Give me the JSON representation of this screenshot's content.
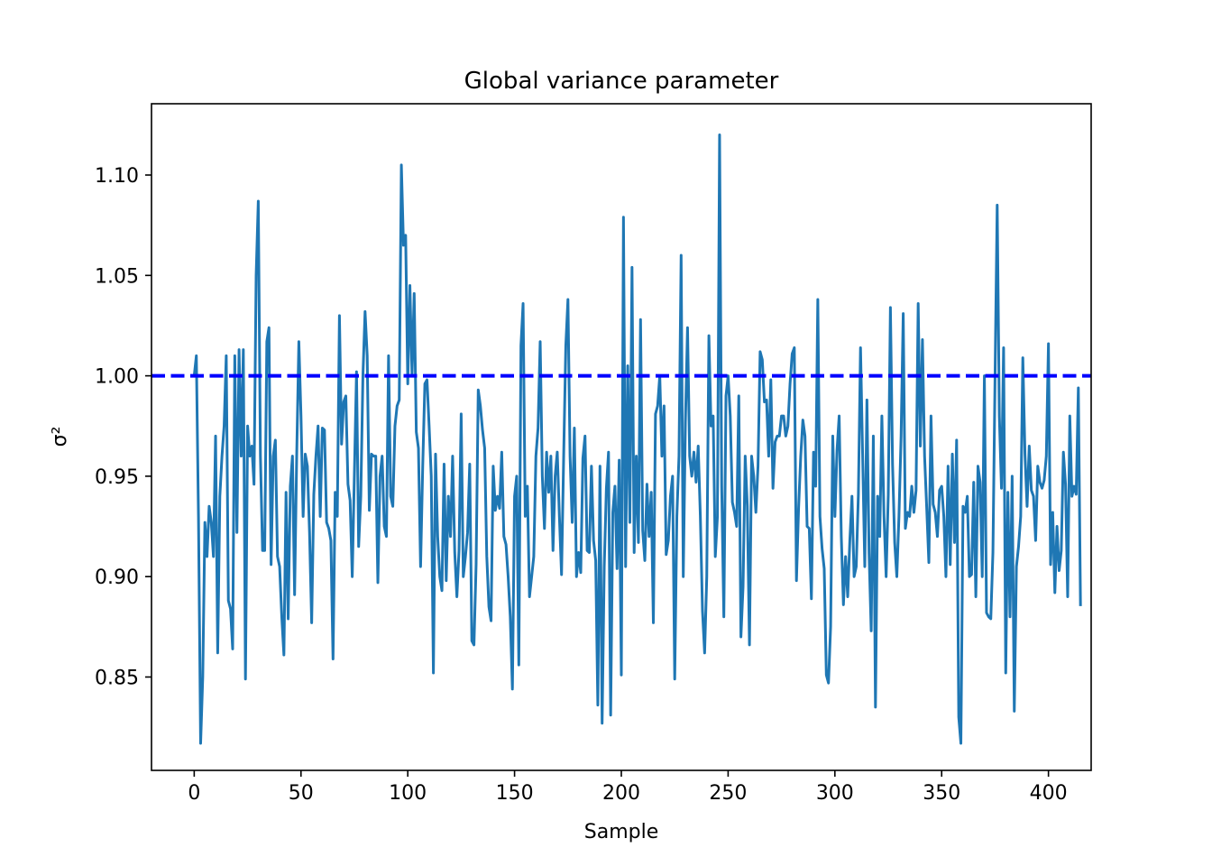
{
  "chart_data": {
    "type": "line",
    "title": "Global variance parameter",
    "xlabel": "Sample",
    "ylabel": "σ²",
    "xlim": [
      -20,
      420
    ],
    "ylim": [
      0.8035,
      1.1355
    ],
    "x_ticks": [
      0,
      50,
      100,
      150,
      200,
      250,
      300,
      350,
      400
    ],
    "y_ticks": [
      0.85,
      0.9,
      0.95,
      1.0,
      1.05,
      1.1
    ],
    "y_tick_labels": [
      "0.85",
      "0.90",
      "0.95",
      "1.00",
      "1.05",
      "1.10"
    ],
    "grid": false,
    "legend": "none",
    "reference_line": {
      "y": 1.0,
      "style": "dashed",
      "color": "#0000ff"
    },
    "series": [
      {
        "color": "#1f77b4",
        "x_start": 0,
        "x_step": 1,
        "values": [
          1.0,
          1.01,
          0.93,
          0.817,
          0.85,
          0.927,
          0.91,
          0.935,
          0.927,
          0.91,
          0.97,
          0.862,
          0.94,
          0.96,
          0.975,
          1.01,
          0.888,
          0.884,
          0.864,
          1.01,
          0.922,
          1.013,
          0.96,
          1.013,
          0.849,
          0.975,
          0.96,
          0.965,
          0.946,
          1.05,
          1.087,
          0.96,
          0.913,
          0.913,
          1.017,
          1.024,
          0.906,
          0.96,
          0.968,
          0.91,
          0.905,
          0.88,
          0.861,
          0.942,
          0.879,
          0.945,
          0.96,
          0.891,
          0.961,
          1.017,
          0.98,
          0.93,
          0.961,
          0.955,
          0.922,
          0.877,
          0.941,
          0.96,
          0.975,
          0.93,
          0.974,
          0.973,
          0.927,
          0.924,
          0.918,
          0.859,
          0.942,
          0.93,
          1.03,
          0.966,
          0.987,
          0.99,
          0.946,
          0.938,
          0.9,
          0.951,
          1.002,
          0.915,
          0.94,
          1.0,
          1.032,
          1.01,
          0.933,
          0.961,
          0.96,
          0.96,
          0.897,
          0.95,
          0.96,
          0.925,
          0.92,
          1.01,
          0.94,
          0.935,
          0.975,
          0.985,
          0.988,
          1.105,
          1.065,
          1.07,
          0.996,
          1.045,
          1.0,
          1.041,
          0.972,
          0.964,
          0.905,
          0.955,
          0.996,
          0.998,
          0.975,
          0.95,
          0.852,
          0.961,
          0.92,
          0.9,
          0.893,
          0.956,
          0.898,
          0.94,
          0.92,
          0.96,
          0.912,
          0.89,
          0.913,
          0.981,
          0.9,
          0.91,
          0.922,
          0.956,
          0.868,
          0.866,
          0.906,
          0.993,
          0.985,
          0.973,
          0.964,
          0.91,
          0.885,
          0.878,
          0.955,
          0.933,
          0.94,
          0.934,
          0.962,
          0.92,
          0.916,
          0.9,
          0.88,
          0.844,
          0.94,
          0.95,
          0.856,
          1.015,
          1.036,
          0.93,
          0.945,
          0.89,
          0.9,
          0.91,
          0.96,
          0.974,
          1.017,
          0.95,
          0.924,
          0.962,
          0.942,
          0.96,
          0.913,
          0.95,
          0.962,
          0.93,
          0.901,
          0.96,
          1.015,
          1.038,
          0.96,
          0.927,
          0.974,
          0.9,
          0.912,
          0.902,
          0.959,
          0.97,
          0.913,
          0.912,
          0.955,
          0.918,
          0.908,
          0.836,
          0.955,
          0.827,
          0.905,
          0.944,
          0.962,
          0.831,
          0.932,
          0.945,
          0.904,
          0.958,
          0.851,
          1.079,
          0.905,
          1.005,
          0.927,
          1.054,
          0.912,
          0.96,
          0.917,
          1.028,
          0.923,
          0.908,
          0.946,
          0.92,
          0.942,
          0.877,
          0.981,
          0.985,
          1.0,
          0.96,
          0.985,
          0.911,
          0.918,
          0.94,
          0.95,
          0.849,
          0.93,
          0.96,
          1.06,
          0.9,
          0.977,
          1.024,
          0.96,
          0.95,
          0.962,
          0.947,
          0.965,
          0.93,
          0.883,
          0.862,
          0.9,
          1.02,
          0.975,
          0.98,
          0.91,
          0.93,
          1.12,
          0.945,
          0.88,
          0.99,
          1.0,
          0.98,
          0.937,
          0.932,
          0.925,
          0.99,
          0.87,
          0.895,
          0.96,
          0.935,
          0.866,
          0.96,
          0.95,
          0.932,
          0.955,
          1.012,
          1.008,
          0.987,
          0.988,
          0.96,
          0.998,
          0.944,
          0.967,
          0.97,
          0.97,
          0.98,
          0.98,
          0.97,
          0.975,
          0.996,
          1.011,
          1.014,
          0.898,
          0.934,
          0.96,
          0.978,
          0.97,
          0.925,
          0.924,
          0.889,
          0.962,
          0.945,
          1.038,
          0.93,
          0.914,
          0.904,
          0.851,
          0.847,
          0.875,
          0.97,
          0.93,
          0.963,
          0.98,
          0.92,
          0.886,
          0.91,
          0.89,
          0.918,
          0.94,
          0.9,
          0.905,
          0.941,
          1.014,
          0.96,
          0.905,
          0.988,
          0.912,
          0.873,
          0.97,
          0.835,
          0.94,
          0.92,
          0.98,
          0.93,
          0.9,
          0.941,
          1.034,
          0.956,
          0.917,
          0.9,
          0.93,
          0.97,
          1.031,
          0.924,
          0.932,
          0.93,
          0.945,
          0.932,
          0.943,
          1.036,
          0.965,
          1.018,
          0.96,
          0.934,
          0.907,
          0.98,
          0.936,
          0.932,
          0.92,
          0.943,
          0.945,
          0.93,
          0.9,
          0.955,
          0.906,
          0.961,
          0.917,
          0.968,
          0.83,
          0.817,
          0.935,
          0.932,
          0.94,
          0.9,
          0.901,
          0.947,
          0.89,
          0.955,
          0.947,
          0.9,
          1.0,
          0.882,
          0.88,
          0.879,
          0.912,
          1.0,
          1.085,
          0.98,
          0.944,
          1.014,
          0.852,
          0.942,
          0.88,
          0.95,
          0.833,
          0.905,
          0.915,
          0.93,
          1.009,
          0.961,
          0.935,
          0.965,
          0.943,
          0.94,
          0.918,
          0.955,
          0.947,
          0.944,
          0.948,
          0.96,
          1.016,
          0.906,
          0.932,
          0.892,
          0.925,
          0.903,
          0.913,
          0.962,
          0.946,
          0.89,
          0.98,
          0.94,
          0.945,
          0.941,
          0.994,
          0.886
        ]
      }
    ]
  }
}
